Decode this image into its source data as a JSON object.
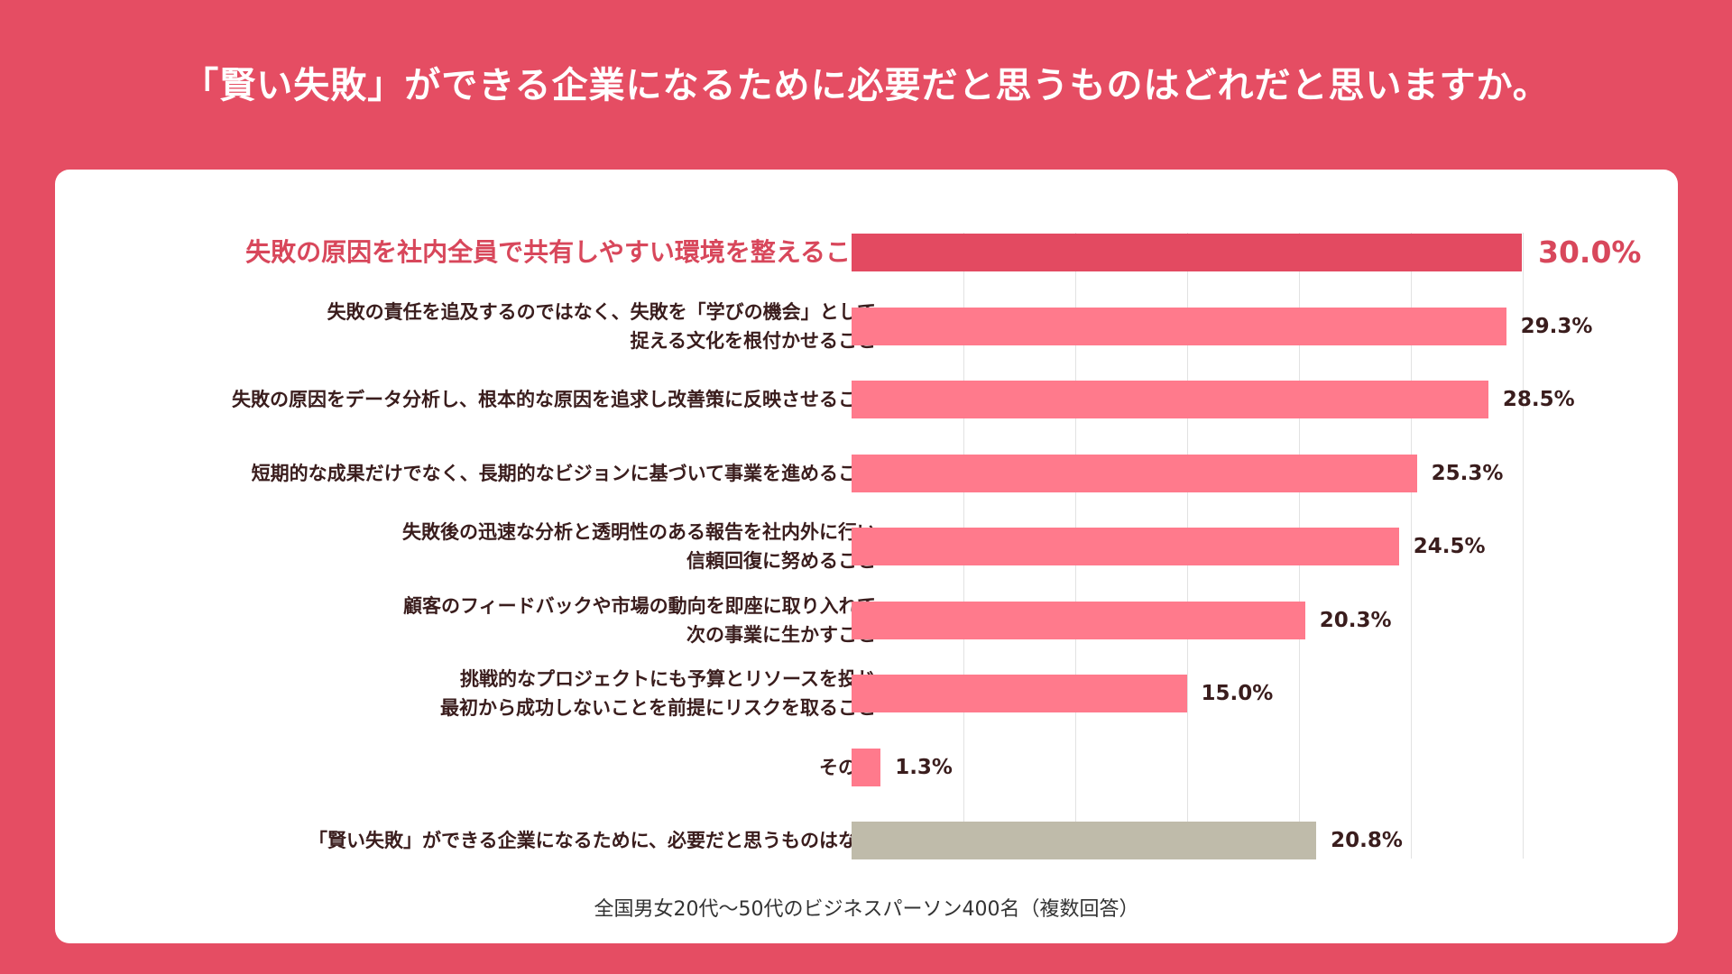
{
  "title": "「賢い失敗」ができる企業になるために必要だと思うものはどれだと思いますか。",
  "footnote": "全国男女20代〜50代のビジネスパーソン400名（複数回答）",
  "colors": {
    "background": "#e54d63",
    "highlight_bar": "#e34a61",
    "normal_bar": "#ff7a8c",
    "neutral_bar": "#bfbbaa",
    "highlight_text": "#d8475b",
    "text": "#3a1d1d"
  },
  "chart_data": {
    "type": "bar",
    "orientation": "horizontal",
    "title": "「賢い失敗」ができる企業になるために必要だと思うものはどれだと思いますか。",
    "unit": "%",
    "xlim": [
      0,
      30
    ],
    "grid": true,
    "categories": [
      {
        "lines": [
          "失敗の原因を社内全員で共有しやすい環境を整えること"
        ],
        "value": 30.0,
        "label": "30.0%",
        "style": "highlight"
      },
      {
        "lines": [
          "失敗の責任を追及するのではなく、失敗を「学びの機会」として",
          "捉える文化を根付かせること"
        ],
        "value": 29.3,
        "label": "29.3%",
        "style": "normal"
      },
      {
        "lines": [
          "失敗の原因をデータ分析し、根本的な原因を追求し改善策に反映させること"
        ],
        "value": 28.5,
        "label": "28.5%",
        "style": "normal"
      },
      {
        "lines": [
          "短期的な成果だけでなく、長期的なビジョンに基づいて事業を進めること"
        ],
        "value": 25.3,
        "label": "25.3%",
        "style": "normal"
      },
      {
        "lines": [
          "失敗後の迅速な分析と透明性のある報告を社内外に行い",
          "信頼回復に努めること"
        ],
        "value": 24.5,
        "label": "24.5%",
        "style": "normal"
      },
      {
        "lines": [
          "顧客のフィードバックや市場の動向を即座に取り入れて",
          "次の事業に生かすこと"
        ],
        "value": 20.3,
        "label": "20.3%",
        "style": "normal"
      },
      {
        "lines": [
          "挑戦的なプロジェクトにも予算とリソースを投じ",
          "最初から成功しないことを前提にリスクを取ること"
        ],
        "value": 15.0,
        "label": "15.0%",
        "style": "normal"
      },
      {
        "lines": [
          "その他"
        ],
        "value": 1.3,
        "label": "1.3%",
        "style": "normal"
      },
      {
        "lines": [
          "「賢い失敗」ができる企業になるために、必要だと思うものはない"
        ],
        "value": 20.8,
        "label": "20.8%",
        "style": "neutral"
      }
    ]
  }
}
